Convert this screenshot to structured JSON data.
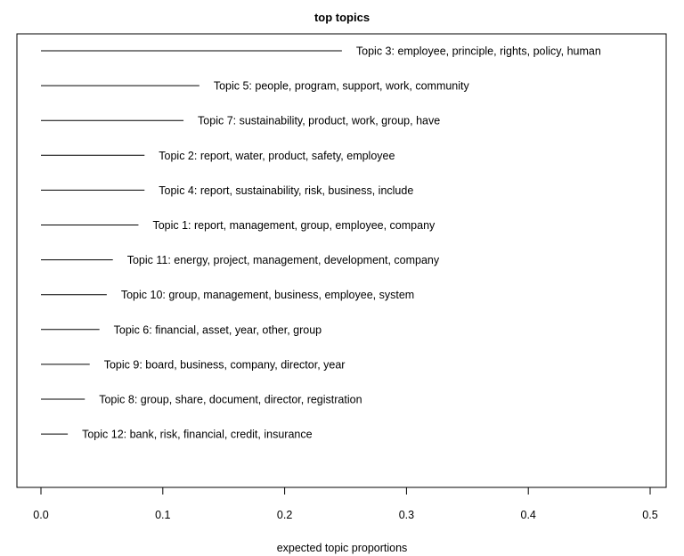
{
  "chart_data": {
    "type": "bar",
    "title": "top topics",
    "xlabel": "expected topic proportions",
    "ylabel": "",
    "xlim": [
      0,
      0.5
    ],
    "xticks": [
      "0.0",
      "0.1",
      "0.2",
      "0.3",
      "0.4",
      "0.5"
    ],
    "grid": false,
    "legend": "none",
    "categories": [
      "Topic 3: employee, principle, rights, policy, human",
      "Topic 5: people, program, support, work, community",
      "Topic 7: sustainability, product, work, group, have",
      "Topic 2: report, water, product, safety, employee",
      "Topic 4: report, sustainability, risk, business, include",
      "Topic 1: report, management, group, employee, company",
      "Topic 11: energy, project, management, development, company",
      "Topic 10: group, management, business, employee, system",
      "Topic 6: financial, asset, year, other, group",
      "Topic 9: board, business, company, director, year",
      "Topic 8: group, share, document, director, registration",
      "Topic 12: bank, risk, financial, credit, insurance"
    ],
    "values": [
      0.247,
      0.13,
      0.117,
      0.085,
      0.085,
      0.08,
      0.059,
      0.054,
      0.048,
      0.04,
      0.036,
      0.022
    ],
    "colors": {
      "line": "#000000",
      "text": "#000000"
    }
  }
}
